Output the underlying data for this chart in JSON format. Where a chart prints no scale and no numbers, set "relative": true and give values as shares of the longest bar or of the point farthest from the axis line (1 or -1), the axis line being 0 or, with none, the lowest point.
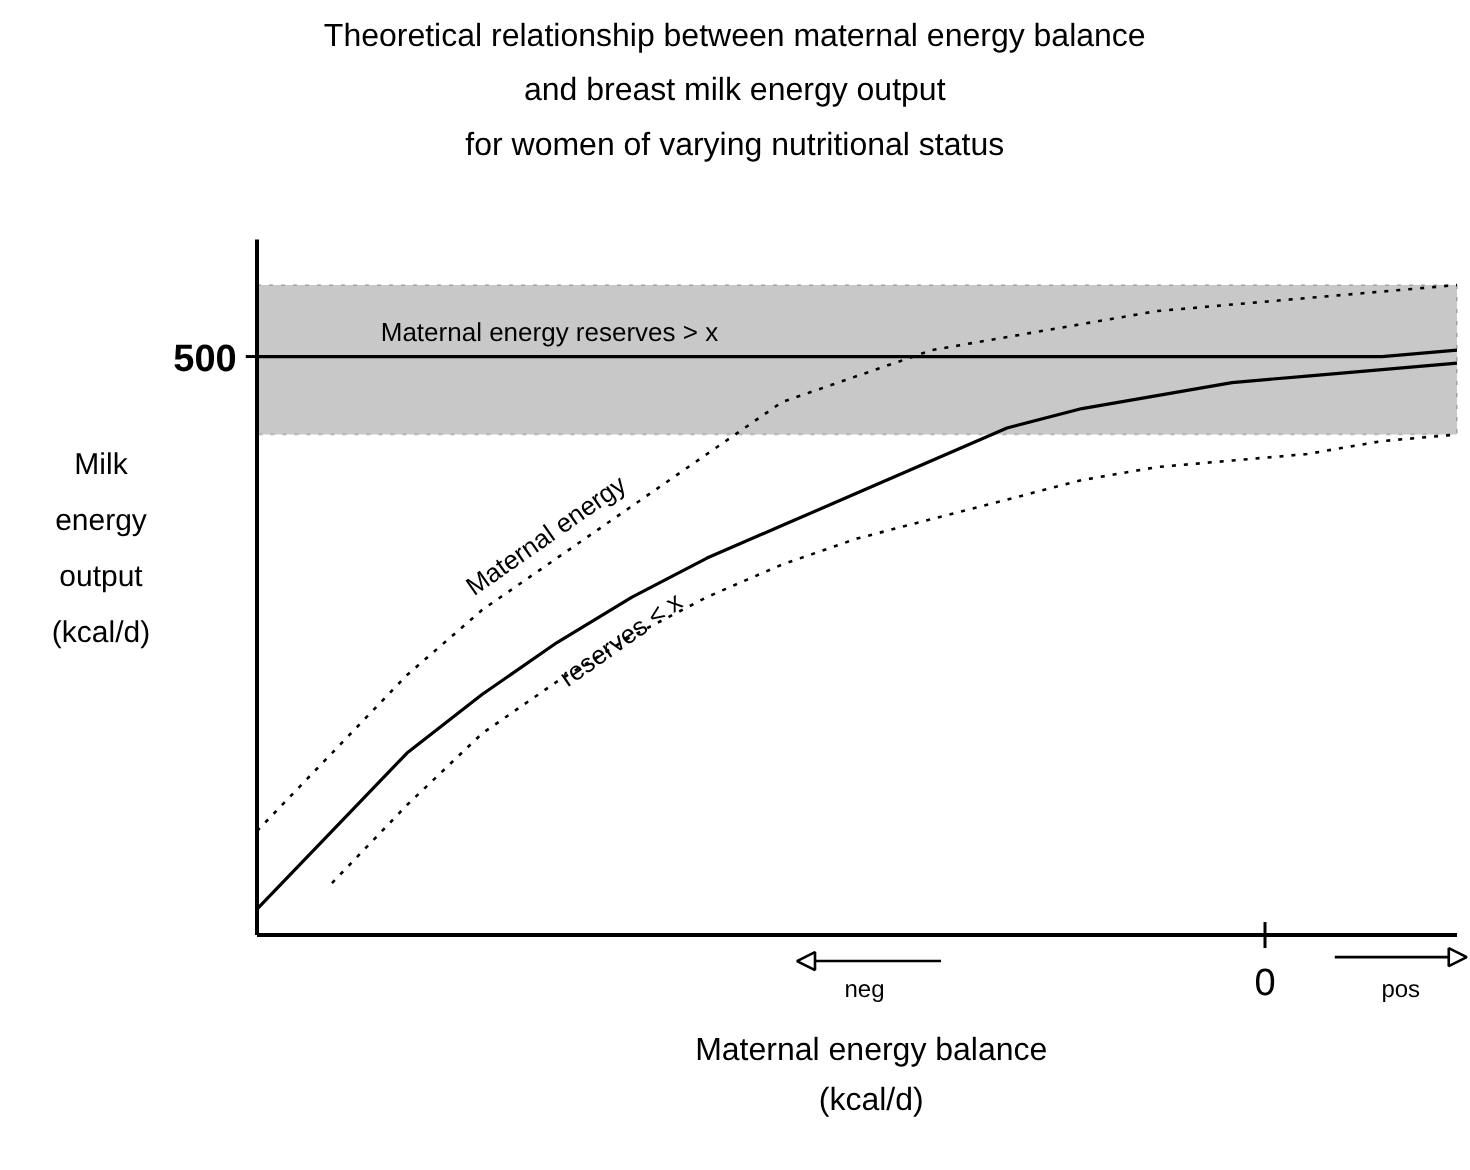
{
  "chart_data": {
    "type": "line",
    "relative": true,
    "title": "Theoretical relationship between maternal energy balance\nand breast milk energy output\nfor women of varying nutritional status",
    "xlabel": "Maternal energy balance (kcal/d)",
    "ylabel": "Milk energy output (kcal/d)",
    "categories": [
      null,
      null,
      null,
      null,
      null,
      null,
      null,
      null,
      null,
      null,
      null,
      null,
      null,
      null,
      null,
      null,
      null
    ],
    "series": [
      {
        "name": "Maternal energy reserves > x",
        "color": "#000000",
        "line_style": "solid",
        "values": [
          0.89,
          0.89,
          0.89,
          0.89,
          0.89,
          0.89,
          0.89,
          0.89,
          0.89,
          0.89,
          0.89,
          0.89,
          0.89,
          0.89,
          0.89,
          0.89,
          0.9
        ]
      },
      {
        "name": "Maternal energy reserves < x",
        "color": "#000000",
        "line_style": "solid",
        "values": [
          0.04,
          0.16,
          0.28,
          0.37,
          0.45,
          0.52,
          0.58,
          0.63,
          0.68,
          0.73,
          0.78,
          0.81,
          0.83,
          0.85,
          0.86,
          0.87,
          0.88
        ]
      },
      {
        "color": "#000000",
        "line_style": "dotted",
        "values": [
          0.16,
          0.28,
          0.4,
          0.5,
          0.58,
          0.66,
          0.74,
          0.82,
          0.86,
          0.9,
          0.92,
          0.94,
          0.96,
          0.97,
          0.98,
          0.99,
          1.0
        ]
      },
      {
        "color": "#000000",
        "line_style": "dotted",
        "values": [
          null,
          0.08,
          0.2,
          0.31,
          0.39,
          0.46,
          0.52,
          0.57,
          0.61,
          0.64,
          0.67,
          0.7,
          0.72,
          0.73,
          0.74,
          0.76,
          0.77
        ]
      }
    ],
    "bands": [
      {
        "axis": "y",
        "from": 0.77,
        "to": 1.0,
        "color": "#c8c8c8"
      }
    ],
    "annotations": [
      "500",
      "0",
      "neg",
      "pos"
    ]
  }
}
